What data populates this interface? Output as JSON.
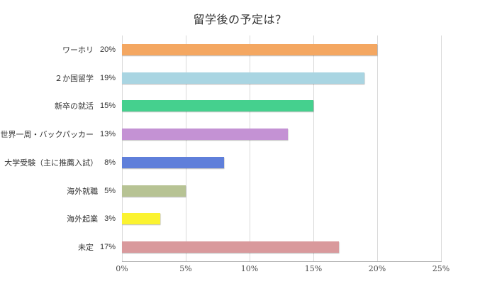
{
  "title": "留学後の予定は？",
  "chart_data": {
    "type": "bar",
    "orientation": "horizontal",
    "title": "留学後の予定は？",
    "categories": [
      "ワーホリ",
      "２か国留学",
      "新卒の就活",
      "世界一周・バックパッカー",
      "大学受験（主に推薦入試）",
      "海外就職",
      "海外起業",
      "未定"
    ],
    "values": [
      20,
      19,
      15,
      13,
      8,
      5,
      3,
      17
    ],
    "value_labels": [
      "20%",
      "19%",
      "15%",
      "13%",
      "8%",
      "5%",
      "3%",
      "17%"
    ],
    "bar_colors": [
      "#F4A761",
      "#A9D5E2",
      "#45D08E",
      "#C492D4",
      "#5F7FDA",
      "#B7C394",
      "#FBF330",
      "#D9999C"
    ],
    "xlabel": "",
    "ylabel": "",
    "xlim": [
      0,
      25
    ],
    "x_tick_values": [
      0,
      5,
      10,
      15,
      20,
      25
    ],
    "x_tick_labels": [
      "0%",
      "5%",
      "10%",
      "15%",
      "20%",
      "25%"
    ],
    "grid": true,
    "gridline_color": "#D9D9D9",
    "axis_line_color": "#ABABAB",
    "legend": "none",
    "background_color": "#FFFFFF"
  }
}
